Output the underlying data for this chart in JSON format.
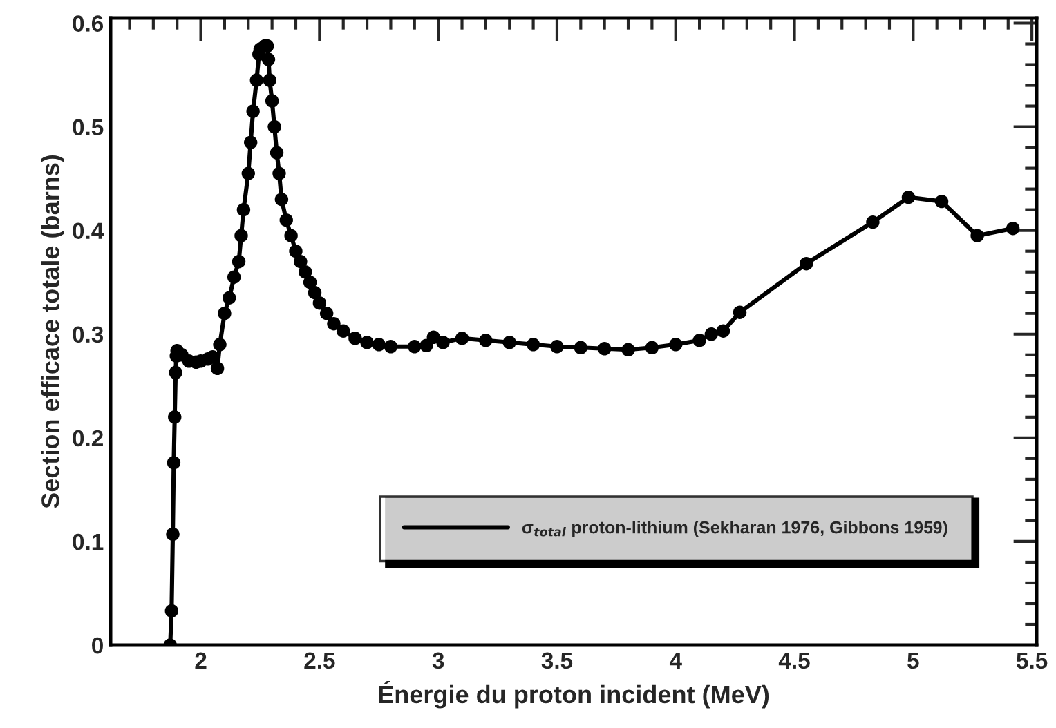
{
  "chart_data": {
    "type": "line",
    "xlabel": "Énergie du proton incident (MeV)",
    "ylabel": "Section efficace totale (barns)",
    "xlim": [
      1.62,
      5.52
    ],
    "ylim": [
      0,
      0.605
    ],
    "xticks": [
      2,
      2.5,
      3,
      3.5,
      4,
      4.5,
      5,
      5.5
    ],
    "yticks": [
      0,
      0.1,
      0.2,
      0.3,
      0.4,
      0.5,
      0.6
    ],
    "grid": false,
    "legend": "bottom right",
    "marker": "circle",
    "line_style": "solid",
    "series": [
      {
        "name": "σ$_{total}$ proton-lithium (Sekharan 1976, Gibbons 1959)",
        "color": "#000000",
        "x": [
          1.871,
          1.877,
          1.882,
          1.886,
          1.89,
          1.894,
          1.897,
          1.9,
          1.92,
          1.95,
          1.98,
          2.0,
          2.03,
          2.05,
          2.07,
          2.08,
          2.1,
          2.12,
          2.14,
          2.16,
          2.17,
          2.18,
          2.2,
          2.21,
          2.22,
          2.235,
          2.245,
          2.25,
          2.27,
          2.28,
          2.285,
          2.29,
          2.3,
          2.31,
          2.32,
          2.33,
          2.34,
          2.36,
          2.38,
          2.4,
          2.42,
          2.44,
          2.46,
          2.48,
          2.5,
          2.53,
          2.56,
          2.6,
          2.65,
          2.7,
          2.75,
          2.8,
          2.9,
          2.95,
          2.98,
          3.02,
          3.1,
          3.2,
          3.3,
          3.4,
          3.5,
          3.6,
          3.7,
          3.8,
          3.9,
          4.0,
          4.1,
          4.15,
          4.2,
          4.27,
          4.55,
          4.83,
          4.98,
          5.12,
          5.27,
          5.42
        ],
        "values": [
          0,
          0.033,
          0.107,
          0.176,
          0.22,
          0.263,
          0.279,
          0.284,
          0.28,
          0.274,
          0.273,
          0.274,
          0.276,
          0.278,
          0.267,
          0.29,
          0.32,
          0.335,
          0.355,
          0.37,
          0.395,
          0.42,
          0.455,
          0.485,
          0.515,
          0.545,
          0.57,
          0.575,
          0.578,
          0.578,
          0.565,
          0.545,
          0.525,
          0.5,
          0.475,
          0.455,
          0.43,
          0.41,
          0.395,
          0.38,
          0.37,
          0.36,
          0.35,
          0.34,
          0.33,
          0.32,
          0.31,
          0.303,
          0.296,
          0.292,
          0.29,
          0.288,
          0.288,
          0.289,
          0.297,
          0.292,
          0.296,
          0.294,
          0.292,
          0.29,
          0.288,
          0.287,
          0.286,
          0.285,
          0.287,
          0.29,
          0.294,
          0.3,
          0.303,
          0.321,
          0.368,
          0.408,
          0.432,
          0.428,
          0.395,
          0.402
        ]
      }
    ]
  }
}
